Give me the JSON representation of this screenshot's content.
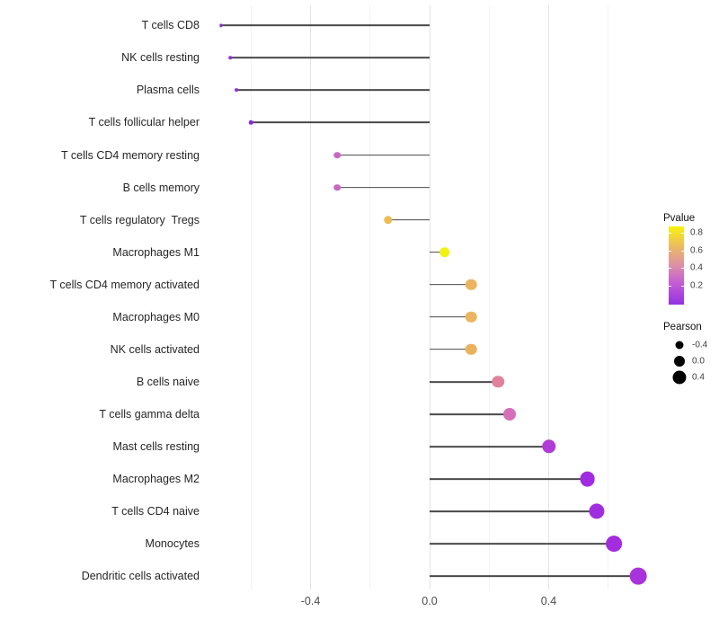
{
  "chart_data": {
    "type": "scatter",
    "subtype": "lollipop",
    "title": "",
    "xlabel": "",
    "ylabel": "",
    "xlim": [
      -0.74,
      0.73
    ],
    "grid": "on",
    "x_ticks": [
      {
        "value": -0.4,
        "label": "-0.4"
      },
      {
        "value": 0.0,
        "label": "0.0"
      },
      {
        "value": 0.4,
        "label": "0.4"
      }
    ],
    "x_minor_ticks": [
      -0.6,
      -0.2,
      0.2,
      0.6
    ],
    "baseline_x": 0.0,
    "rows": [
      {
        "label": "T cells CD8",
        "pearson": -0.7,
        "dot_color": "#8a2be3"
      },
      {
        "label": "NK cells resting",
        "pearson": -0.67,
        "dot_color": "#9230e5"
      },
      {
        "label": "Plasma cells",
        "pearson": -0.65,
        "dot_color": "#8e2ce3"
      },
      {
        "label": "T cells follicular helper",
        "pearson": -0.6,
        "dot_color": "#8c2ae2"
      },
      {
        "label": "T cells CD4 memory resting",
        "pearson": -0.31,
        "dot_color": "#c868c5"
      },
      {
        "label": "B cells memory",
        "pearson": -0.31,
        "dot_color": "#c868c5"
      },
      {
        "label": "T cells regulatory  Tregs",
        "pearson": -0.14,
        "dot_color": "#ebbc55"
      },
      {
        "label": "Macrophages M1",
        "pearson": 0.05,
        "dot_color": "#f0f312"
      },
      {
        "label": "T cells CD4 memory activated",
        "pearson": 0.14,
        "dot_color": "#ebb55f"
      },
      {
        "label": "Macrophages M0",
        "pearson": 0.14,
        "dot_color": "#ebb55f"
      },
      {
        "label": "NK cells activated",
        "pearson": 0.14,
        "dot_color": "#ebb25c"
      },
      {
        "label": "B cells naive",
        "pearson": 0.23,
        "dot_color": "#e0829b"
      },
      {
        "label": "T cells gamma delta",
        "pearson": 0.27,
        "dot_color": "#d56fb9"
      },
      {
        "label": "Mast cells resting",
        "pearson": 0.4,
        "dot_color": "#b13bd6"
      },
      {
        "label": "Macrophages M2",
        "pearson": 0.53,
        "dot_color": "#a02be0"
      },
      {
        "label": "T cells CD4 naive",
        "pearson": 0.56,
        "dot_color": "#a02ee0"
      },
      {
        "label": "Monocytes",
        "pearson": 0.62,
        "dot_color": "#a32cde"
      },
      {
        "label": "Dendritic cells activated",
        "pearson": 0.7,
        "dot_color": "#a832dc"
      }
    ],
    "legend_pvalue": {
      "title": "Pvalue",
      "tick_labels": [
        "0.8",
        "0.6",
        "0.4",
        "0.2"
      ],
      "range": [
        0.0,
        0.85
      ],
      "gradient_top_color": "#f8f20d",
      "gradient_bottom_color": "#9232e2",
      "position": "right"
    },
    "legend_pearson": {
      "title": "Pearson",
      "entries": [
        {
          "label": "-0.4",
          "value": -0.4
        },
        {
          "label": "0.0",
          "value": 0.0
        },
        {
          "label": "0.4",
          "value": 0.4
        }
      ],
      "dot_color": "#000000",
      "position": "right"
    }
  }
}
